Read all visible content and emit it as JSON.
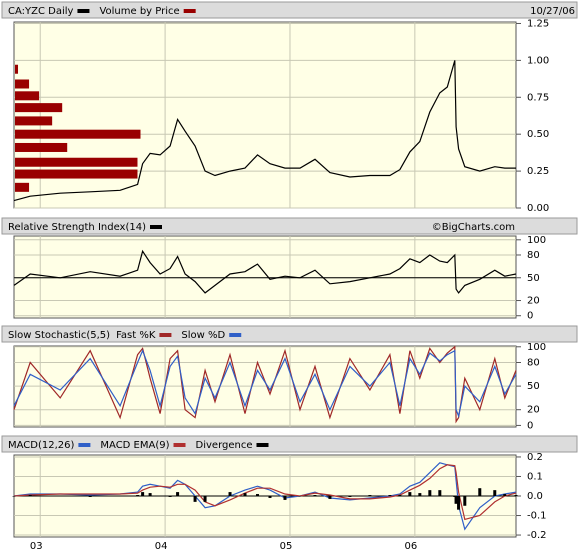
{
  "chart_data": [
    {
      "type": "line",
      "date": "10/27/06",
      "x": [
        2002.79,
        2002.92,
        2003.16,
        2003.4,
        2003.64,
        2003.78,
        2003.82,
        2003.88,
        2003.96,
        2004.04,
        2004.1,
        2004.16,
        2004.24,
        2004.32,
        2004.4,
        2004.52,
        2004.64,
        2004.74,
        2004.84,
        2004.96,
        2005.08,
        2005.2,
        2005.32,
        2005.48,
        2005.64,
        2005.8,
        2005.88,
        2005.96,
        2006.04,
        2006.12,
        2006.2,
        2006.26,
        2006.32,
        2006.33,
        2006.35,
        2006.4,
        2006.52,
        2006.64,
        2006.72,
        2006.81
      ],
      "xlim": [
        2002.79,
        2006.81
      ],
      "series": [
        {
          "name": "CA:YZC Daily",
          "color": "#000000",
          "values": [
            0.05,
            0.08,
            0.1,
            0.11,
            0.12,
            0.16,
            0.3,
            0.37,
            0.36,
            0.42,
            0.6,
            0.52,
            0.42,
            0.25,
            0.22,
            0.25,
            0.27,
            0.36,
            0.3,
            0.27,
            0.27,
            0.33,
            0.24,
            0.21,
            0.22,
            0.22,
            0.26,
            0.38,
            0.45,
            0.65,
            0.78,
            0.82,
            1.0,
            0.55,
            0.4,
            0.28,
            0.25,
            0.28,
            0.27,
            0.27
          ]
        }
      ],
      "volume_by_price": {
        "name": "Volume by Price",
        "color": "#990000",
        "levels": [
          0.94,
          0.84,
          0.76,
          0.68,
          0.59,
          0.5,
          0.41,
          0.31,
          0.23,
          0.14
        ],
        "values": [
          3,
          14,
          24,
          47,
          37,
          125,
          52,
          122,
          122,
          14
        ],
        "vlim": [
          0,
          500
        ]
      },
      "ylim": [
        0,
        1.26
      ],
      "yticks": [
        {
          "value": 0,
          "label": "0.00"
        },
        {
          "value": 0.25,
          "label": "0.25"
        },
        {
          "value": 0.5,
          "label": "0.50"
        },
        {
          "value": 0.75,
          "label": "0.75"
        },
        {
          "value": 1,
          "label": "1.00"
        },
        {
          "value": 1.25,
          "label": "1.25"
        }
      ],
      "grid": true
    },
    {
      "type": "line",
      "credit": "©BigCharts.com",
      "x": [
        2002.79,
        2002.92,
        2003.16,
        2003.4,
        2003.64,
        2003.78,
        2003.82,
        2003.88,
        2003.96,
        2004.04,
        2004.1,
        2004.16,
        2004.24,
        2004.32,
        2004.4,
        2004.52,
        2004.64,
        2004.74,
        2004.84,
        2004.96,
        2005.08,
        2005.2,
        2005.32,
        2005.48,
        2005.64,
        2005.8,
        2005.88,
        2005.96,
        2006.04,
        2006.12,
        2006.2,
        2006.26,
        2006.32,
        2006.33,
        2006.35,
        2006.4,
        2006.52,
        2006.64,
        2006.72,
        2006.81
      ],
      "xlim": [
        2002.79,
        2006.81
      ],
      "series": [
        {
          "name": "Relative Strength Index(14)",
          "color": "#000000",
          "values": [
            40,
            55,
            50,
            58,
            52,
            60,
            85,
            70,
            55,
            62,
            78,
            55,
            45,
            30,
            40,
            55,
            58,
            68,
            48,
            52,
            50,
            60,
            42,
            45,
            50,
            55,
            62,
            75,
            70,
            80,
            72,
            70,
            80,
            35,
            30,
            40,
            48,
            60,
            52,
            55
          ]
        }
      ],
      "ylim": [
        -3,
        105
      ],
      "yticks": [
        0,
        20,
        50,
        80,
        100
      ],
      "midline": 50,
      "grid": true
    },
    {
      "type": "line",
      "title": "Slow Stochastic(5,5)",
      "x": [
        2002.79,
        2002.92,
        2003.16,
        2003.4,
        2003.64,
        2003.78,
        2003.82,
        2003.88,
        2003.96,
        2004.04,
        2004.1,
        2004.16,
        2004.24,
        2004.32,
        2004.4,
        2004.52,
        2004.64,
        2004.74,
        2004.84,
        2004.96,
        2005.08,
        2005.2,
        2005.32,
        2005.48,
        2005.64,
        2005.8,
        2005.88,
        2005.96,
        2006.04,
        2006.12,
        2006.2,
        2006.26,
        2006.32,
        2006.33,
        2006.35,
        2006.4,
        2006.52,
        2006.64,
        2006.72,
        2006.81
      ],
      "xlim": [
        2002.79,
        2006.81
      ],
      "series": [
        {
          "name": "Fast %K",
          "color": "#a02828",
          "values": [
            20,
            80,
            35,
            95,
            10,
            90,
            98,
            60,
            15,
            85,
            95,
            20,
            10,
            70,
            30,
            90,
            15,
            80,
            40,
            95,
            20,
            75,
            10,
            85,
            45,
            90,
            15,
            95,
            60,
            98,
            80,
            92,
            100,
            5,
            10,
            60,
            20,
            85,
            35,
            70
          ]
        },
        {
          "name": "Slow %D",
          "color": "#2f5fc8",
          "values": [
            25,
            65,
            45,
            85,
            25,
            80,
            95,
            70,
            25,
            75,
            88,
            35,
            15,
            60,
            35,
            80,
            25,
            70,
            45,
            85,
            30,
            65,
            20,
            75,
            50,
            80,
            25,
            85,
            65,
            92,
            82,
            90,
            95,
            20,
            12,
            50,
            30,
            75,
            40,
            65
          ]
        }
      ],
      "ylim": [
        -2,
        101
      ],
      "yticks": [
        0,
        20,
        50,
        80,
        100
      ],
      "grid": true
    },
    {
      "type": "line",
      "x": [
        2002.79,
        2002.92,
        2003.16,
        2003.4,
        2003.64,
        2003.78,
        2003.82,
        2003.88,
        2003.96,
        2004.04,
        2004.1,
        2004.16,
        2004.24,
        2004.32,
        2004.4,
        2004.52,
        2004.64,
        2004.74,
        2004.84,
        2004.96,
        2005.08,
        2005.2,
        2005.32,
        2005.48,
        2005.64,
        2005.8,
        2005.88,
        2005.96,
        2006.04,
        2006.12,
        2006.2,
        2006.26,
        2006.32,
        2006.33,
        2006.35,
        2006.4,
        2006.52,
        2006.64,
        2006.72,
        2006.81
      ],
      "xlim": [
        2002.79,
        2006.81
      ],
      "xticks": [
        {
          "value": 2003,
          "label": "03"
        },
        {
          "value": 2004,
          "label": "04"
        },
        {
          "value": 2005,
          "label": "05"
        },
        {
          "value": 2006,
          "label": "06"
        }
      ],
      "series": [
        {
          "name": "MACD(12,26)",
          "color": "#2f5fc8",
          "values": [
            0.0,
            0.01,
            0.01,
            0.005,
            0.01,
            0.02,
            0.05,
            0.06,
            0.05,
            0.04,
            0.08,
            0.06,
            0.0,
            -0.06,
            -0.05,
            0.0,
            0.03,
            0.05,
            0.03,
            -0.01,
            0.0,
            0.02,
            -0.01,
            -0.02,
            -0.01,
            0.0,
            0.01,
            0.05,
            0.07,
            0.12,
            0.17,
            0.16,
            0.15,
            0.08,
            -0.05,
            -0.17,
            -0.06,
            0.0,
            0.01,
            0.02
          ]
        },
        {
          "name": "MACD EMA(9)",
          "color": "#b03030",
          "values": [
            0.0,
            0.005,
            0.01,
            0.01,
            0.01,
            0.015,
            0.03,
            0.045,
            0.05,
            0.045,
            0.06,
            0.06,
            0.03,
            -0.03,
            -0.05,
            -0.02,
            0.015,
            0.04,
            0.04,
            0.01,
            0.0,
            0.015,
            0.005,
            -0.015,
            -0.015,
            -0.005,
            0.005,
            0.03,
            0.055,
            0.09,
            0.14,
            0.16,
            0.155,
            0.12,
            0.02,
            -0.12,
            -0.1,
            -0.03,
            0.0,
            0.015
          ]
        },
        {
          "name": "Divergence",
          "color": "#000000",
          "type": "bar",
          "values": [
            0,
            0.005,
            0,
            -0.005,
            0,
            0.005,
            0.02,
            0.015,
            0,
            -0.005,
            0.02,
            0,
            -0.03,
            -0.03,
            0,
            0.02,
            0.015,
            0.01,
            -0.01,
            -0.02,
            0,
            0.005,
            -0.015,
            -0.005,
            0.005,
            0.005,
            0.005,
            0.02,
            0.015,
            0.03,
            0.03,
            0,
            -0.005,
            -0.04,
            -0.07,
            -0.05,
            0.04,
            0.03,
            0.01,
            0.005
          ]
        }
      ],
      "ylim": [
        -0.21,
        0.21
      ],
      "yticks": [
        -0.2,
        -0.1,
        {
          "value": 0,
          "label": "0.0"
        },
        0.1,
        0.2
      ],
      "midline": 0,
      "grid": true
    }
  ]
}
